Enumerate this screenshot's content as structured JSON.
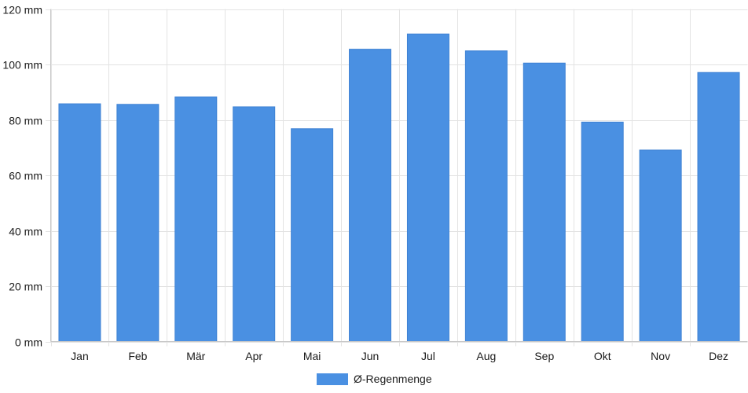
{
  "chart_data": {
    "type": "bar",
    "categories": [
      "Jan",
      "Feb",
      "Mär",
      "Apr",
      "Mai",
      "Jun",
      "Jul",
      "Aug",
      "Sep",
      "Okt",
      "Nov",
      "Dez"
    ],
    "series": [
      {
        "name": "Ø-Regenmenge",
        "color": "#4a90e2",
        "values": [
          85.8,
          85.6,
          88.3,
          84.7,
          76.8,
          105.5,
          111.0,
          104.9,
          100.5,
          79.2,
          69.1,
          97.1
        ]
      }
    ],
    "y_ticks": [
      "0 mm",
      "20 mm",
      "40 mm",
      "60 mm",
      "80 mm",
      "100 mm",
      "120 mm"
    ],
    "ylim": [
      0,
      120
    ],
    "grid": true,
    "legend_position": "bottom"
  }
}
